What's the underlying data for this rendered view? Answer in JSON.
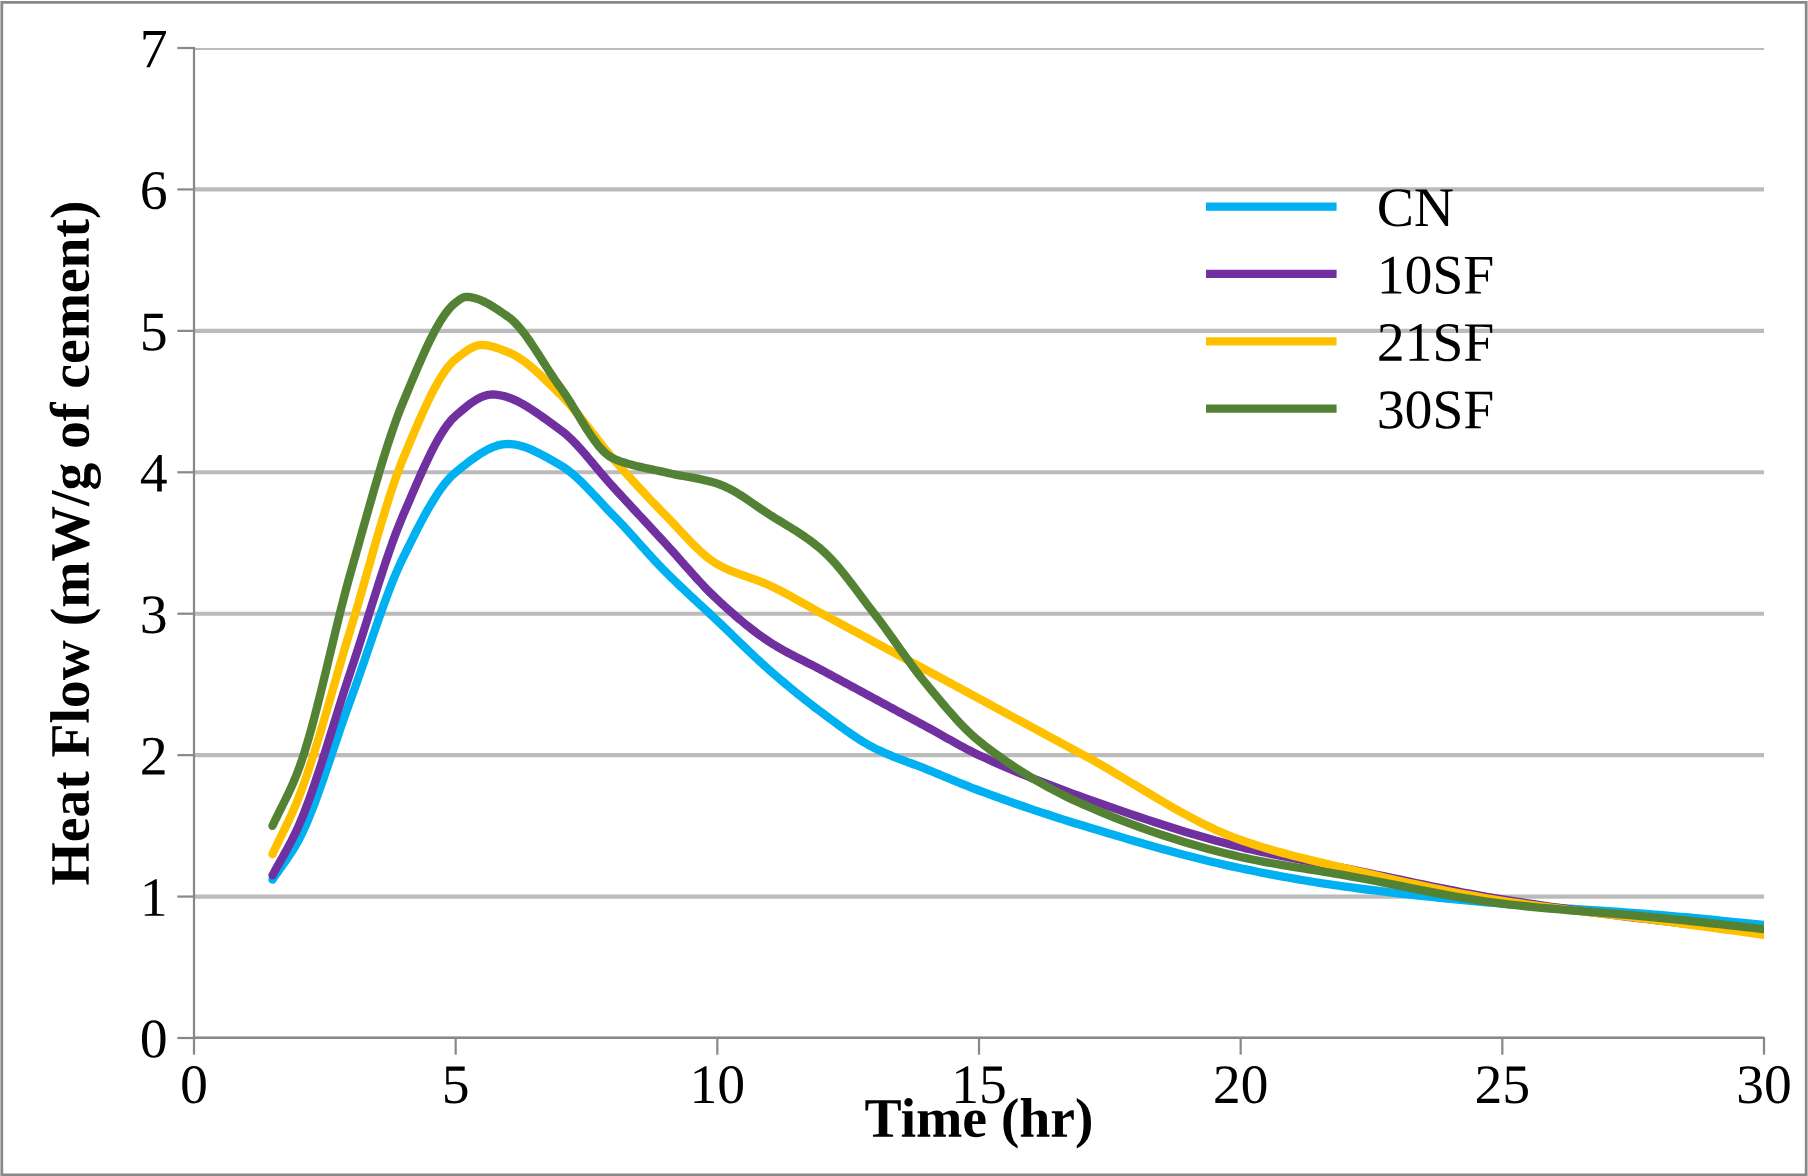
{
  "chart_data": {
    "type": "line",
    "xlabel": "Time (hr)",
    "ylabel": "Heat Flow (mW/g of cement)",
    "xlim": [
      0,
      30
    ],
    "xticks": [
      0,
      5,
      10,
      15,
      20,
      25,
      30
    ],
    "ylim": [
      0,
      7
    ],
    "yticks": [
      0,
      1,
      2,
      3,
      4,
      5,
      6,
      7
    ],
    "grid": "y",
    "legend": "top right",
    "marker": "none",
    "line_style": "solid",
    "series": [
      {
        "name": "CN",
        "color": "#00b0f0",
        "x": [
          1.5,
          2,
          3,
          4,
          5,
          6,
          7,
          8,
          9,
          10,
          11,
          12,
          13,
          14,
          15,
          17,
          20,
          22,
          25,
          28,
          30
        ],
        "values": [
          1.12,
          1.4,
          2.4,
          3.4,
          4.0,
          4.2,
          4.05,
          3.7,
          3.3,
          2.95,
          2.6,
          2.3,
          2.05,
          1.9,
          1.75,
          1.5,
          1.2,
          1.07,
          0.95,
          0.87,
          0.8
        ]
      },
      {
        "name": "10SF",
        "color": "#7030a0",
        "x": [
          1.5,
          2,
          3,
          4,
          5,
          5.7,
          7,
          8,
          9,
          10,
          11,
          12,
          13,
          14,
          15,
          17,
          20,
          22,
          25,
          28,
          30
        ],
        "values": [
          1.15,
          1.5,
          2.6,
          3.7,
          4.4,
          4.55,
          4.3,
          3.9,
          3.5,
          3.1,
          2.8,
          2.6,
          2.4,
          2.2,
          2.0,
          1.7,
          1.35,
          1.2,
          0.98,
          0.83,
          0.75
        ]
      },
      {
        "name": "21SF",
        "color": "#ffc000",
        "x": [
          1.5,
          2,
          3,
          4,
          5,
          5.5,
          6,
          7,
          8,
          9,
          10,
          11,
          12,
          13,
          14,
          15,
          17,
          20,
          22,
          25,
          28,
          30
        ],
        "values": [
          1.3,
          1.7,
          2.9,
          4.1,
          4.8,
          4.9,
          4.85,
          4.55,
          4.1,
          3.7,
          3.35,
          3.2,
          3.0,
          2.8,
          2.6,
          2.4,
          2.0,
          1.4,
          1.2,
          0.97,
          0.83,
          0.73
        ]
      },
      {
        "name": "30SF",
        "color": "#548235",
        "x": [
          1.5,
          2,
          3,
          4,
          5,
          5.2,
          6,
          7,
          8,
          9,
          10,
          11,
          12,
          13,
          14,
          15,
          17,
          20,
          22,
          25,
          28,
          30
        ],
        "values": [
          1.5,
          1.9,
          3.3,
          4.5,
          5.2,
          5.24,
          5.1,
          4.6,
          4.1,
          4.0,
          3.92,
          3.7,
          3.45,
          3.0,
          2.5,
          2.1,
          1.65,
          1.28,
          1.15,
          0.95,
          0.85,
          0.77
        ]
      }
    ]
  }
}
